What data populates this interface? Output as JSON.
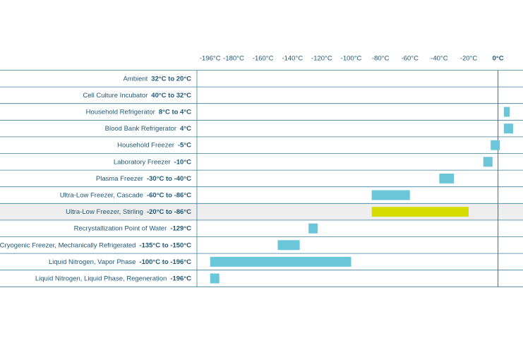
{
  "chart_data": {
    "type": "range-bar",
    "categories": [
      "Ambient",
      "Cell Culture Incubator",
      "Household Refrigerator",
      "Blood Bank Refrigerator",
      "Household Freezer",
      "Laboratory Freezer",
      "Plasma Freezer",
      "Ultra-Low Freezer, Cascade",
      "Ultra-Low Freezer, Stirling",
      "Recrystallization Point of Water",
      "Cryogenic Freezer, Mechanically Refrigerated",
      "Liquid Nitrogen, Vapor Phase",
      "Liquid Nitrogen, Liquid Phase, Regeneration"
    ],
    "values": [
      [
        32,
        20
      ],
      [
        40,
        32
      ],
      [
        8,
        4
      ],
      4,
      -5,
      -10,
      [
        -30,
        -40
      ],
      [
        -60,
        -86
      ],
      [
        -20,
        -86
      ],
      -129,
      [
        -135,
        -150
      ],
      [
        -100,
        -196
      ],
      -196
    ],
    "value_labels": [
      "32°C to 20°C",
      "40°C to 32°C",
      "8°C to 4°C",
      "4°C",
      "-5°C",
      "-10°C",
      "-30°C to -40°C",
      "-60°C to -86°C",
      "-20°C to -86°C",
      "-129°C",
      "-135°C to -150°C",
      "-100°C to -196°C",
      "-196°C"
    ],
    "color": "#6cc6da",
    "highlight_index": 8,
    "highlight_color": "#d6dc00",
    "xlim": [
      -205,
      17
    ],
    "xticks": [
      {
        "value": -196,
        "label": "-196°C"
      },
      {
        "value": -180,
        "label": "-180°C"
      },
      {
        "value": -160,
        "label": "-160°C"
      },
      {
        "value": -140,
        "label": "-140°C"
      },
      {
        "value": -120,
        "label": "-120°C"
      },
      {
        "value": -100,
        "label": "-100°C"
      },
      {
        "value": -80,
        "label": "-80°C"
      },
      {
        "value": -60,
        "label": "-60°C"
      },
      {
        "value": -40,
        "label": "-40°C"
      },
      {
        "value": -20,
        "label": "-20°C"
      },
      {
        "value": 0,
        "label": "0°C"
      }
    ]
  }
}
